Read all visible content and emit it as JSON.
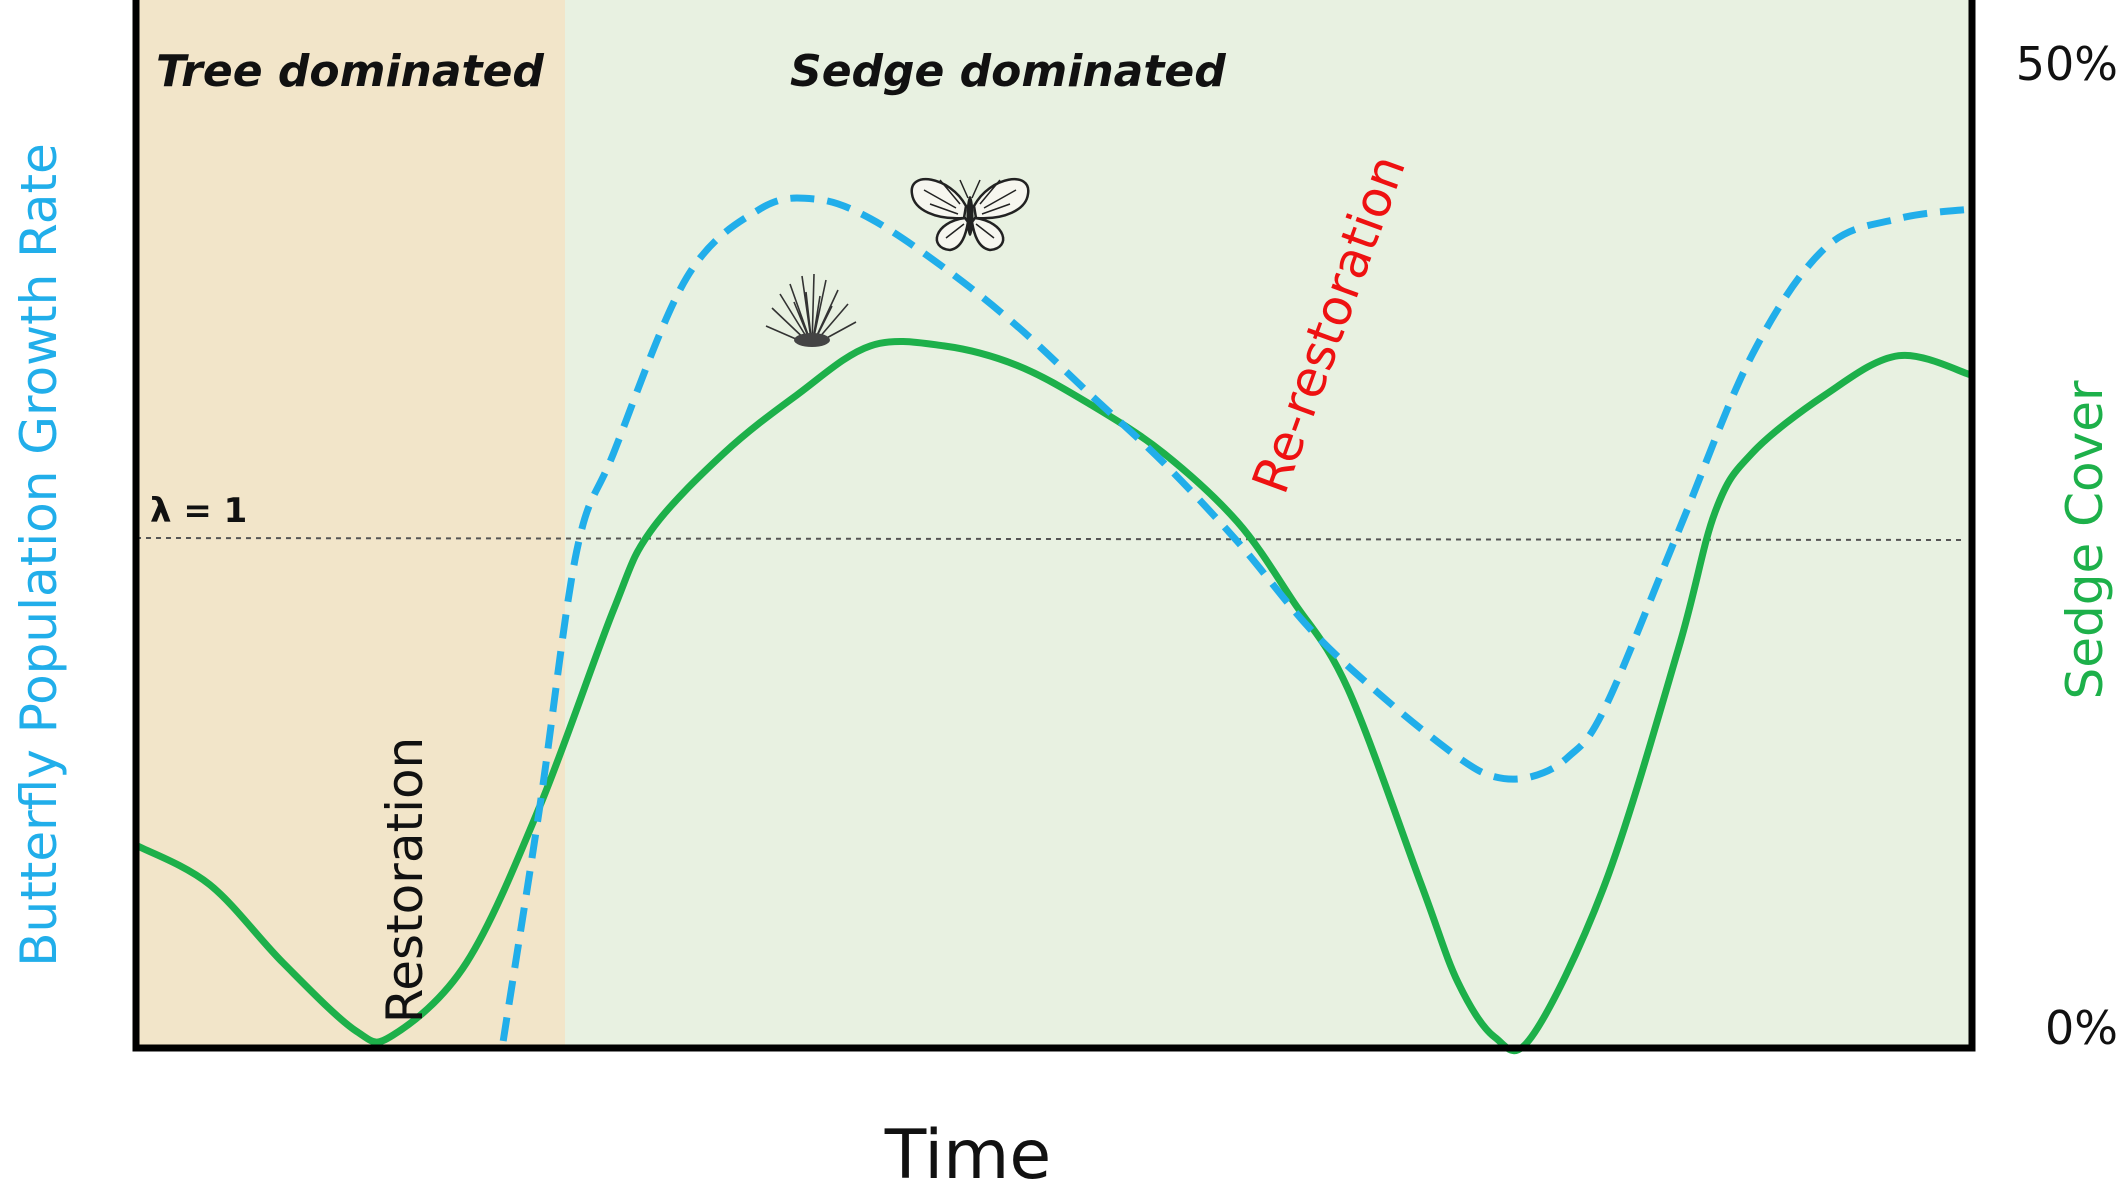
{
  "chart_data": {
    "type": "line",
    "xlabel": "Time",
    "ylabel_left": "Butterfly Population Growth Rate",
    "ylabel_right": "Sedge Cover",
    "right_ticks": [
      "50%",
      "0%"
    ],
    "ylim_right": [
      0,
      50
    ],
    "reference_line": {
      "label": "λ = 1",
      "style": "dotted"
    },
    "regions": [
      {
        "label": "Tree dominated",
        "color": "#f2e5c9"
      },
      {
        "label": "Sedge dominated",
        "color": "#e8f1e1"
      }
    ],
    "annotations": [
      {
        "text": "Restoration",
        "color": "#111111"
      },
      {
        "text": "Re-restoration",
        "color": "#ee1111"
      }
    ],
    "series": [
      {
        "name": "Sedge Cover",
        "axis": "right",
        "color": "#1db04a",
        "style": "solid",
        "x": [
          0,
          4,
          8,
          12,
          14,
          18,
          22,
          26,
          28,
          32,
          36,
          40,
          44,
          48,
          52,
          56,
          60,
          63,
          66,
          70,
          72,
          74,
          76,
          80,
          84,
          86,
          88,
          92,
          96,
          100
        ],
        "y": [
          10,
          8,
          4,
          0.5,
          0.3,
          4,
          12,
          22,
          26,
          30,
          33,
          35.5,
          35.5,
          34.5,
          32.5,
          30,
          26.5,
          22.5,
          18,
          8,
          3,
          0.2,
          0.2,
          8,
          20,
          27,
          30,
          33,
          35,
          34
        ]
      },
      {
        "name": "Butterfly Population Growth Rate",
        "axis": "left",
        "color": "#21aeea",
        "style": "dashed",
        "x": [
          20,
          22,
          24,
          26,
          30,
          34,
          37,
          40,
          44,
          48,
          52,
          56,
          60,
          64,
          68,
          72,
          74,
          76,
          78,
          80,
          84,
          88,
          92,
          96,
          100
        ],
        "y": [
          0,
          12,
          25,
          30,
          39,
          42.5,
          43,
          42,
          39.5,
          36.5,
          33,
          29.5,
          25.5,
          21,
          17.5,
          14.5,
          13.5,
          13.5,
          14.5,
          17,
          26,
          35,
          40.5,
          42,
          42.5
        ]
      }
    ]
  }
}
